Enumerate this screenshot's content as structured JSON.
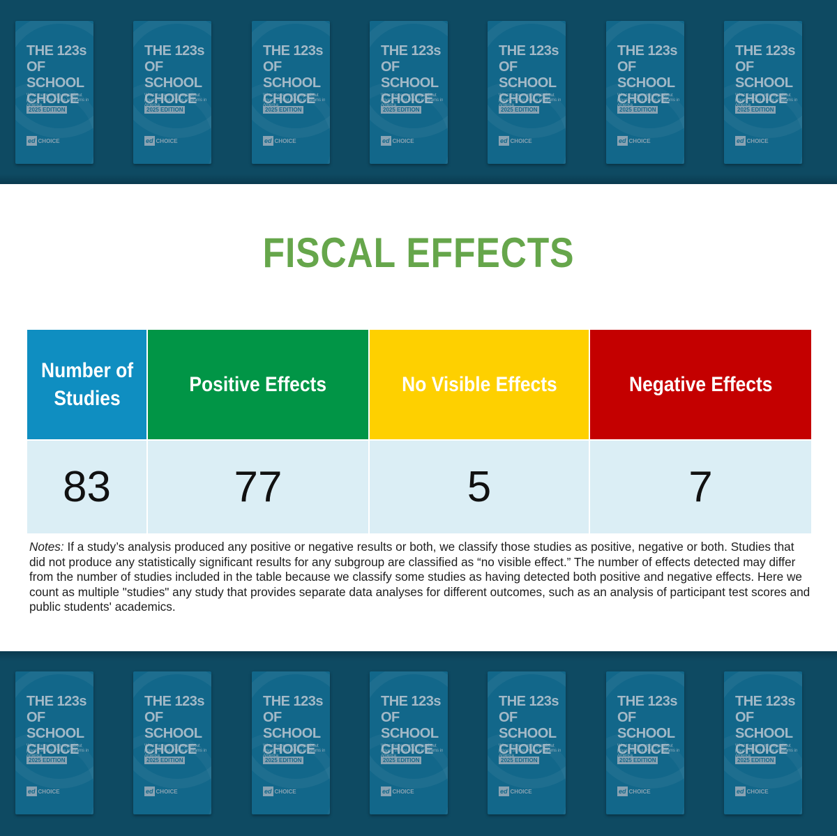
{
  "book_cover": {
    "title_lines": [
      "THE 123s",
      "OF SCHOOL",
      "CHOICE"
    ],
    "subtitle": "What the research says about private school choice programs in America",
    "edition": "2025 EDITION",
    "logo_ed": "ed",
    "logo_choice": "CHOICE",
    "count_per_row": 7
  },
  "heading": "FISCAL EFFECTS",
  "chart_data": {
    "type": "table",
    "columns": [
      {
        "key": "studies",
        "header": "Number of Studies",
        "value": "83",
        "header_color": "#0f8ec1"
      },
      {
        "key": "positive",
        "header": "Positive Effects",
        "value": "77",
        "header_color": "#019546"
      },
      {
        "key": "no_visible",
        "header": "No Visible Effects",
        "value": "5",
        "header_color": "#fed000"
      },
      {
        "key": "negative",
        "header": "Negative Effects",
        "value": "7",
        "header_color": "#c40000"
      }
    ],
    "value_row_color": "#dbeef5"
  },
  "notes": {
    "label": "Notes:",
    "text": " If a study’s analysis produced any positive or negative results or both, we classify those studies as positive, negative or both. Studies that did not produce any statistically significant results for any subgroup are classified as “no visible effect.” The number of effects detected may differ from the number of studies included in the table because we classify some studies as having detected both positive and negative effects. Here we count as multiple \"studies\" any study that provides separate data analyses for different outcomes, such as an analysis of participant test scores and public students' academics."
  },
  "colors": {
    "band": "#0e4a62",
    "book": "#12678a",
    "heading": "#66a64b"
  }
}
